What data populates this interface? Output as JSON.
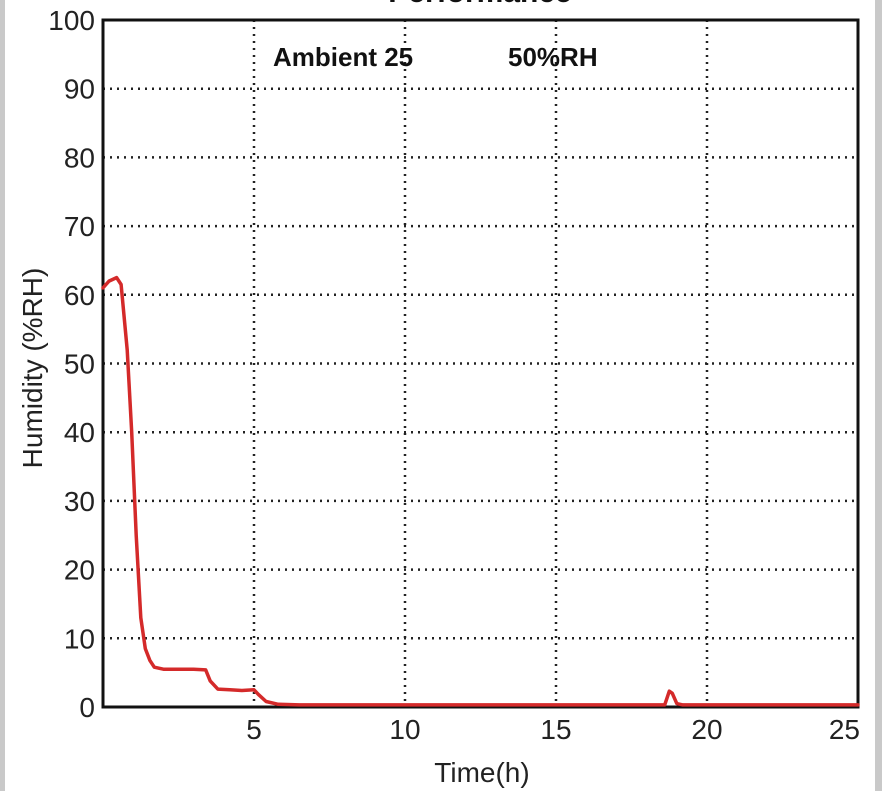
{
  "chart_data": {
    "type": "line",
    "title": "Performance",
    "xlabel": "Time(h)",
    "ylabel": "Humidity (%RH)",
    "xlim": [
      0,
      25
    ],
    "ylim": [
      0,
      100
    ],
    "xticks": [
      5,
      10,
      15,
      20,
      25
    ],
    "yticks": [
      0,
      10,
      20,
      30,
      40,
      50,
      60,
      70,
      80,
      90,
      100
    ],
    "grid": true,
    "annotation": {
      "ambient": "Ambient 25",
      "rh": "50%RH"
    },
    "series": [
      {
        "color": "#d42a2a",
        "x": [
          0,
          0.2,
          0.45,
          0.6,
          0.8,
          0.95,
          1.1,
          1.25,
          1.4,
          1.55,
          1.7,
          2.0,
          2.3,
          2.6,
          3.0,
          3.4,
          3.55,
          3.8,
          4.2,
          4.6,
          5.0,
          5.15,
          5.4,
          5.8,
          6.5,
          8,
          12,
          16,
          18.6,
          18.75,
          18.85,
          19.0,
          19.2,
          20,
          22,
          25
        ],
        "y": [
          61,
          62,
          62.5,
          61.5,
          52,
          40,
          25,
          13,
          8.5,
          6.8,
          5.8,
          5.5,
          5.5,
          5.5,
          5.5,
          5.4,
          3.8,
          2.6,
          2.5,
          2.4,
          2.5,
          1.8,
          0.8,
          0.4,
          0.3,
          0.3,
          0.3,
          0.3,
          0.3,
          2.3,
          2.0,
          0.5,
          0.3,
          0.3,
          0.3,
          0.3
        ]
      }
    ]
  }
}
